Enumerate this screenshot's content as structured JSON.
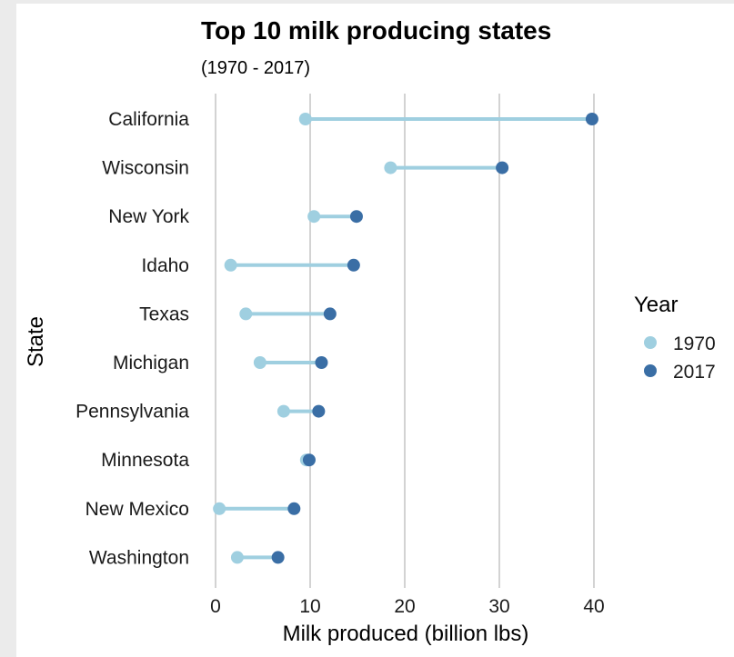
{
  "chart_data": {
    "type": "dumbbell",
    "title": "Top 10 milk producing states",
    "subtitle": "(1970 - 2017)",
    "xlabel": "Milk produced (billion lbs)",
    "ylabel": "State",
    "xlim": [
      0,
      40
    ],
    "xticks": [
      0,
      10,
      20,
      30,
      40
    ],
    "grid": "vertical",
    "legend": {
      "title": "Year",
      "placement": "right",
      "entries": [
        {
          "name": "1970",
          "color": "#9fcfe0"
        },
        {
          "name": "2017",
          "color": "#3a6ea5"
        }
      ]
    },
    "series_names": [
      "1970",
      "2017"
    ],
    "states": [
      {
        "name": "California",
        "v1970": 9.5,
        "v2017": 39.8
      },
      {
        "name": "Wisconsin",
        "v1970": 18.5,
        "v2017": 30.3
      },
      {
        "name": "New York",
        "v1970": 10.4,
        "v2017": 14.9
      },
      {
        "name": "Idaho",
        "v1970": 1.6,
        "v2017": 14.6
      },
      {
        "name": "Texas",
        "v1970": 3.2,
        "v2017": 12.1
      },
      {
        "name": "Michigan",
        "v1970": 4.7,
        "v2017": 11.2
      },
      {
        "name": "Pennsylvania",
        "v1970": 7.2,
        "v2017": 10.9
      },
      {
        "name": "Minnesota",
        "v1970": 9.6,
        "v2017": 9.9
      },
      {
        "name": "New Mexico",
        "v1970": 0.4,
        "v2017": 8.3
      },
      {
        "name": "Washington",
        "v1970": 2.3,
        "v2017": 6.6
      }
    ]
  },
  "colors": {
    "y1970": "#9fcfe0",
    "y2017": "#3a6ea5",
    "segment": "#9fcfe0"
  }
}
